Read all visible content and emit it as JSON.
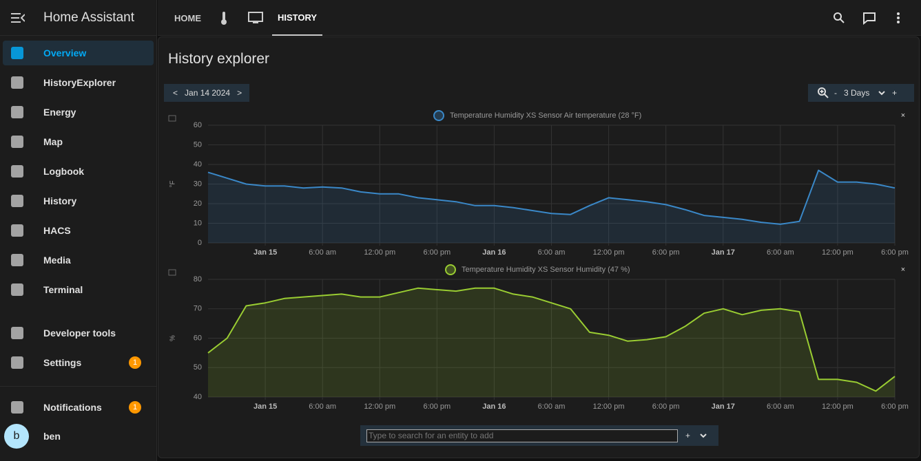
{
  "sidebar": {
    "title": "Home Assistant",
    "items": [
      {
        "label": "Overview"
      },
      {
        "label": "HistoryExplorer"
      },
      {
        "label": "Energy"
      },
      {
        "label": "Map"
      },
      {
        "label": "Logbook"
      },
      {
        "label": "History"
      },
      {
        "label": "HACS"
      },
      {
        "label": "Media"
      },
      {
        "label": "Terminal"
      },
      {
        "label": "Developer tools"
      },
      {
        "label": "Settings",
        "badge": 1
      }
    ],
    "notifications": {
      "label": "Notifications",
      "badge": 1
    },
    "user": {
      "initial": "b",
      "name": "ben"
    }
  },
  "toolbar": {
    "tabs": [
      "HOME",
      "HISTORY"
    ]
  },
  "page": {
    "title": "History explorer",
    "date": "Jan 14 2024",
    "prev": "<",
    "next": ">",
    "zoom_out": "-",
    "range": "3 Days",
    "zoom_in": "+",
    "close": "×"
  },
  "chart_data": [
    {
      "type": "line",
      "title": "Temperature Humidity XS Sensor Air temperature (28 °F)",
      "y_label": "°F",
      "color": "#3a88c8",
      "x": [
        -6,
        -4,
        -2,
        0,
        2,
        4,
        6,
        8,
        10,
        12,
        14,
        16,
        18,
        20,
        22,
        24,
        26,
        28,
        30,
        32,
        34,
        36,
        38,
        40,
        42,
        44,
        46,
        48,
        50,
        52,
        54,
        56,
        58,
        60,
        62,
        64,
        66
      ],
      "values": [
        36,
        33,
        30,
        29,
        29,
        28,
        28.5,
        28,
        26,
        25,
        25,
        23,
        22,
        21,
        19,
        19,
        18,
        16.5,
        15,
        14.5,
        19,
        23,
        22,
        21,
        19.5,
        17,
        14,
        13,
        12,
        10.5,
        9.5,
        11,
        37,
        31,
        31,
        30,
        28
      ],
      "xlim": [
        -6,
        66
      ],
      "xticks": [
        {
          "value": 0,
          "label": "Jan 15"
        },
        {
          "value": 6,
          "label": "6:00 am"
        },
        {
          "value": 12,
          "label": "12:00 pm"
        },
        {
          "value": 18,
          "label": "6:00 pm"
        },
        {
          "value": 24,
          "label": "Jan 16"
        },
        {
          "value": 30,
          "label": "6:00 am"
        },
        {
          "value": 36,
          "label": "12:00 pm"
        },
        {
          "value": 42,
          "label": "6:00 pm"
        },
        {
          "value": 48,
          "label": "Jan 17"
        },
        {
          "value": 54,
          "label": "6:00 am"
        },
        {
          "value": 60,
          "label": "12:00 pm"
        },
        {
          "value": 66,
          "label": "6:00 pm"
        }
      ],
      "ylim": [
        0,
        60
      ],
      "yticks": [
        0,
        10,
        20,
        30,
        40,
        50,
        60
      ],
      "grid": true
    },
    {
      "type": "line",
      "title": "Temperature Humidity XS Sensor Humidity (47 %)",
      "y_label": "%",
      "color": "#9acd32",
      "x": [
        -6,
        -4,
        -2,
        0,
        2,
        4,
        6,
        8,
        10,
        12,
        14,
        16,
        18,
        20,
        22,
        24,
        26,
        28,
        30,
        32,
        34,
        36,
        38,
        40,
        42,
        44,
        46,
        48,
        50,
        52,
        54,
        56,
        58,
        60,
        62,
        64,
        66
      ],
      "values": [
        55,
        60,
        71,
        72,
        73.5,
        74,
        74.5,
        75,
        74,
        74,
        75.5,
        77,
        76.5,
        76,
        77,
        77,
        75,
        74,
        72,
        70,
        62,
        61,
        59,
        59.5,
        60.5,
        64,
        68.5,
        70,
        68,
        69.5,
        70,
        69,
        46,
        46,
        45,
        42,
        47
      ],
      "xlim": [
        -6,
        66
      ],
      "xticks": [
        {
          "value": 0,
          "label": "Jan 15"
        },
        {
          "value": 6,
          "label": "6:00 am"
        },
        {
          "value": 12,
          "label": "12:00 pm"
        },
        {
          "value": 18,
          "label": "6:00 pm"
        },
        {
          "value": 24,
          "label": "Jan 16"
        },
        {
          "value": 30,
          "label": "6:00 am"
        },
        {
          "value": 36,
          "label": "12:00 pm"
        },
        {
          "value": 42,
          "label": "6:00 pm"
        },
        {
          "value": 48,
          "label": "Jan 17"
        },
        {
          "value": 54,
          "label": "6:00 am"
        },
        {
          "value": 60,
          "label": "12:00 pm"
        },
        {
          "value": 66,
          "label": "6:00 pm"
        }
      ],
      "ylim": [
        40,
        80
      ],
      "yticks": [
        40,
        50,
        60,
        70,
        80
      ],
      "grid": true
    }
  ],
  "search": {
    "placeholder": "Type to search for an entity to add",
    "add": "+"
  }
}
